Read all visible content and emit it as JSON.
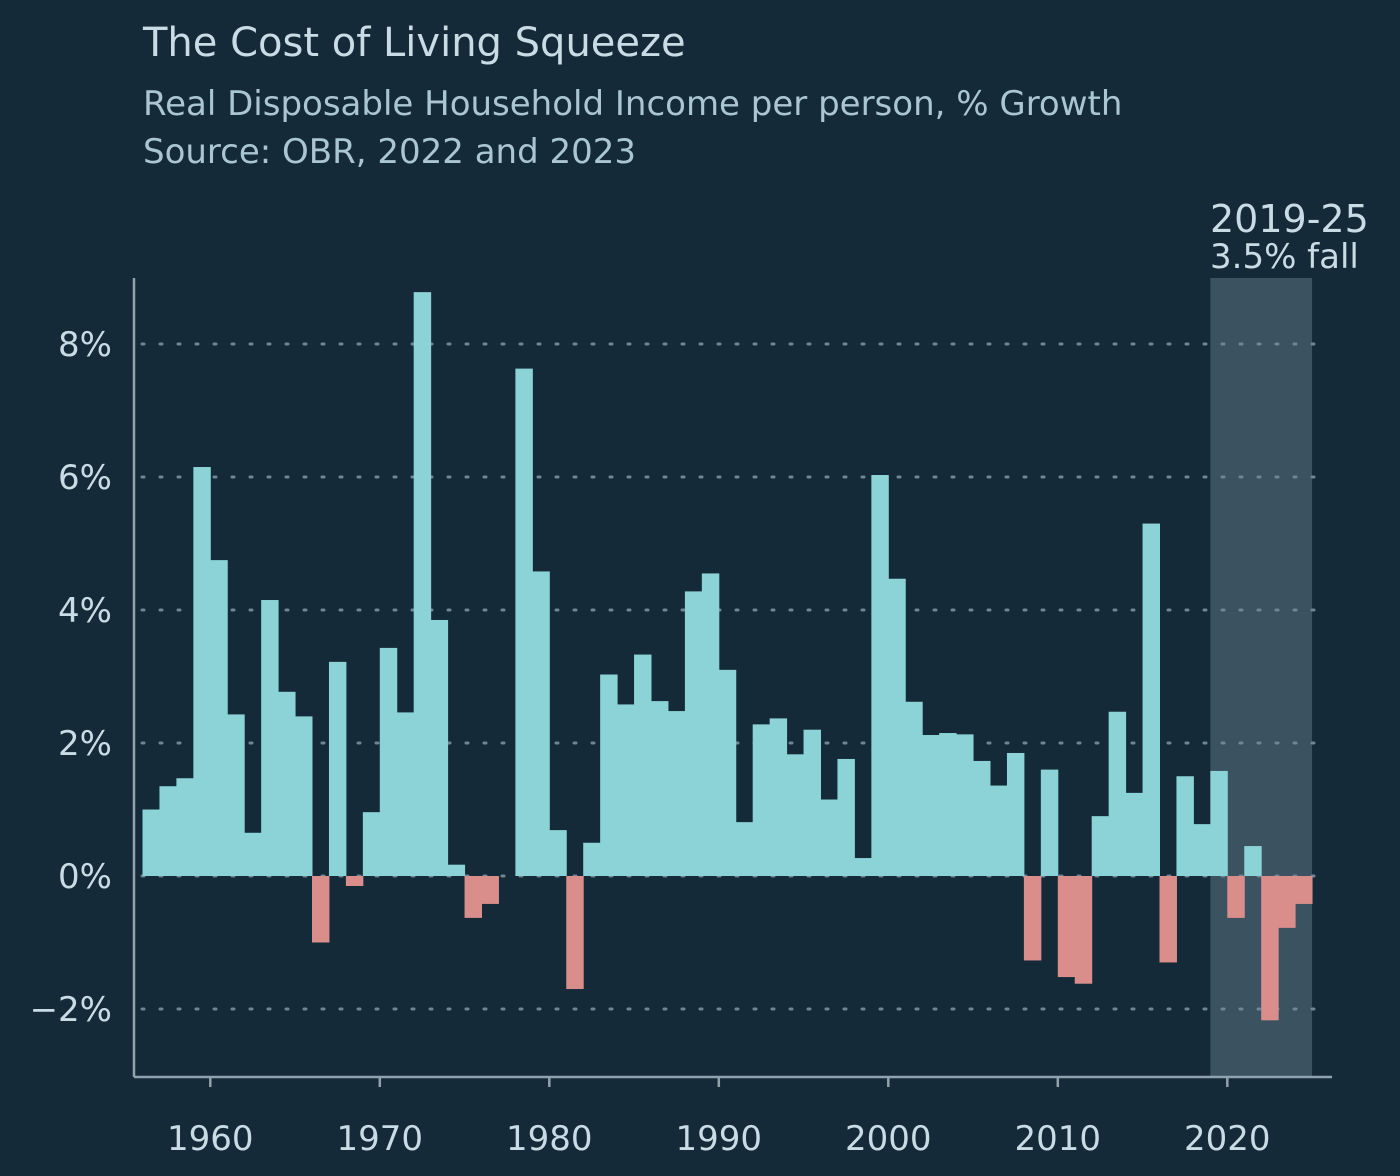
{
  "title": "The Cost of Living Squeeze",
  "subtitle": "Real Disposable Household Income per person, % Growth",
  "source": "Source: OBR, 2022 and 2023",
  "colors": {
    "background": "#142a38",
    "positive": "#8bd3d6",
    "negative": "#d98e8b",
    "highlight": "#3b5260",
    "grid": "#6d8795",
    "axis": "#8ea3ad"
  },
  "chart_data": {
    "type": "bar",
    "x": [
      1956,
      1957,
      1958,
      1959,
      1960,
      1961,
      1962,
      1963,
      1964,
      1965,
      1966,
      1967,
      1968,
      1969,
      1970,
      1971,
      1972,
      1973,
      1974,
      1975,
      1976,
      1977,
      1978,
      1979,
      1980,
      1981,
      1982,
      1983,
      1984,
      1985,
      1986,
      1987,
      1988,
      1989,
      1990,
      1991,
      1992,
      1993,
      1994,
      1995,
      1996,
      1997,
      1998,
      1999,
      2000,
      2001,
      2002,
      2003,
      2004,
      2005,
      2006,
      2007,
      2008,
      2009,
      2010,
      2011,
      2012,
      2013,
      2014,
      2015,
      2016,
      2017,
      2018,
      2019,
      2020,
      2021,
      2022,
      2023,
      2024
    ],
    "values": [
      1.0,
      1.35,
      1.47,
      6.15,
      4.75,
      2.43,
      0.65,
      4.15,
      2.77,
      2.4,
      -1.0,
      3.22,
      -0.15,
      0.96,
      3.43,
      2.46,
      8.78,
      3.85,
      0.17,
      -0.63,
      -0.42,
      0.0,
      7.63,
      4.58,
      0.69,
      -1.7,
      0.5,
      3.03,
      2.58,
      3.33,
      2.63,
      2.48,
      4.28,
      4.55,
      3.1,
      0.81,
      2.28,
      2.37,
      1.83,
      2.2,
      1.15,
      1.76,
      0.27,
      6.03,
      4.47,
      2.62,
      2.12,
      2.15,
      2.13,
      1.73,
      1.36,
      1.85,
      -1.27,
      1.6,
      -1.52,
      -1.62,
      0.9,
      2.47,
      1.25,
      5.3,
      -1.3,
      1.5,
      0.78,
      1.58,
      -0.63,
      0.45,
      -2.17,
      -0.78,
      -0.42
    ],
    "xlim": [
      1955.5,
      2025
    ],
    "ylim": [
      -3.05,
      9.0
    ],
    "xticks": [
      1960,
      1970,
      1980,
      1990,
      2000,
      2010,
      2020
    ],
    "xtick_labels": [
      "1960",
      "1970",
      "1980",
      "1990",
      "2000",
      "2010",
      "2020"
    ],
    "yticks": [
      -2,
      0,
      2,
      4,
      6,
      8
    ],
    "ytick_labels": [
      "−2%",
      "0%",
      "2%",
      "4%",
      "6%",
      "8%"
    ],
    "grid": "horizontal dotted",
    "highlight": {
      "range": [
        2019,
        2025
      ],
      "label_line1": "2019-25",
      "label_line2": "3.5% fall"
    }
  }
}
